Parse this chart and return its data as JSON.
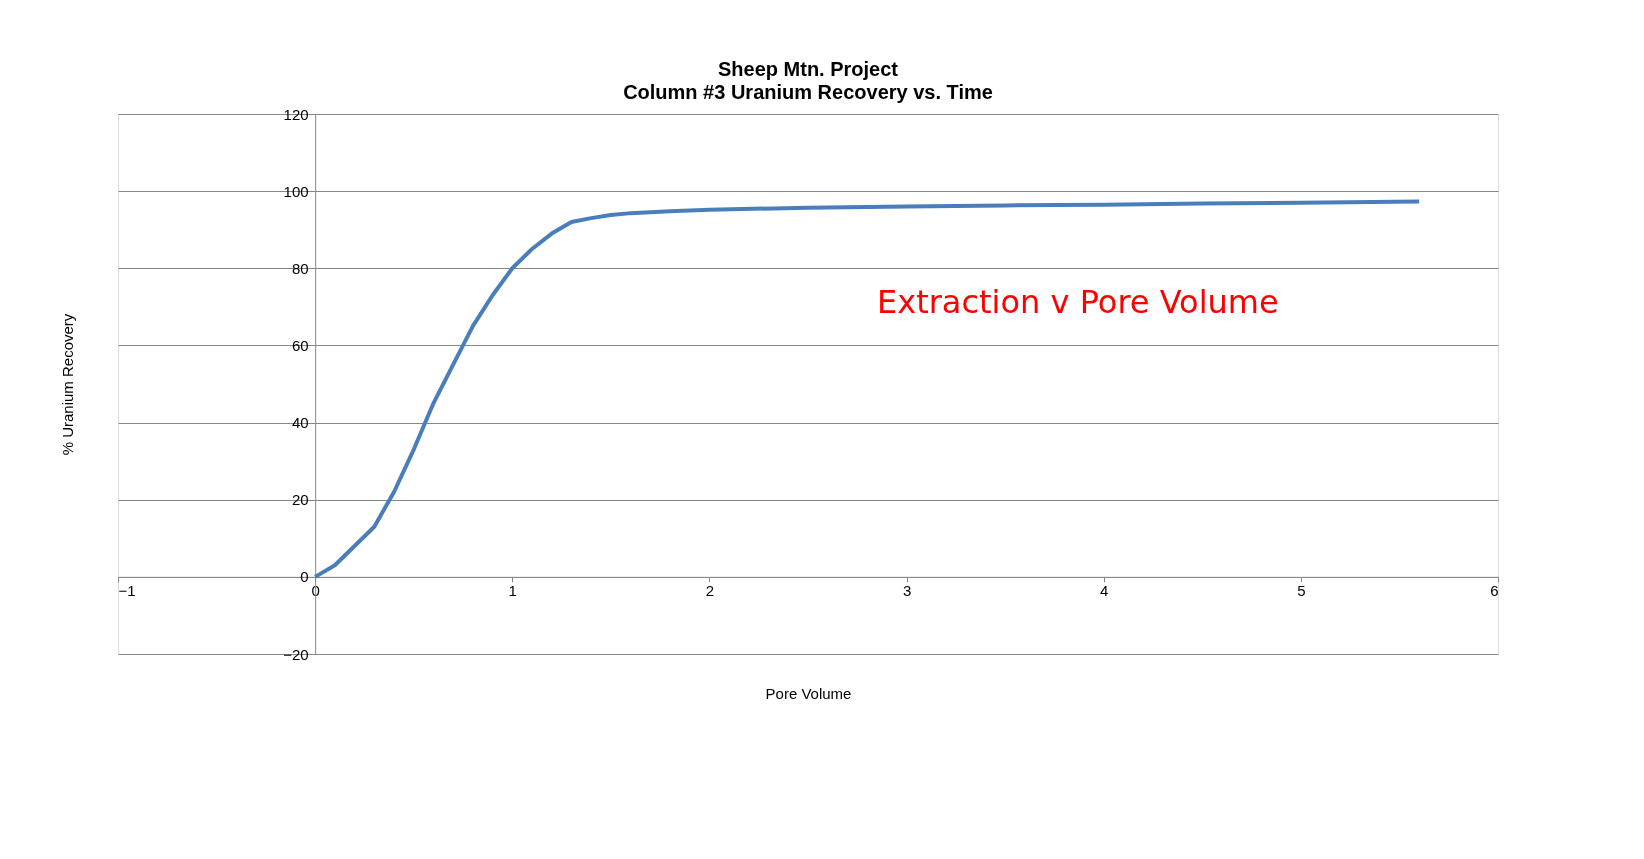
{
  "chart_data": {
    "type": "line",
    "title": "Sheep Mtn. Project",
    "subtitle": "Column #3 Uranium Recovery vs. Time",
    "xlabel": "Pore Volume",
    "ylabel": "% Uranium Recovery",
    "annotations": [
      "Extraction v Pore Volume"
    ],
    "x": [
      0,
      0.1,
      0.2,
      0.3,
      0.4,
      0.5,
      0.6,
      0.7,
      0.8,
      0.9,
      1.0,
      1.1,
      1.2,
      1.3,
      1.4,
      1.5,
      1.6,
      1.8,
      2.0,
      2.5,
      3.0,
      3.5,
      4.0,
      4.5,
      5.0,
      5.6
    ],
    "series": [
      {
        "color": "#4a7ebb",
        "values": [
          0,
          3,
          8,
          13,
          22,
          33,
          45,
          55,
          65,
          73,
          80,
          85,
          89,
          92,
          93,
          93.8,
          94.3,
          94.8,
          95.2,
          95.7,
          96,
          96.3,
          96.5,
          96.8,
          97,
          97.3
        ]
      }
    ],
    "xlim": [
      -1,
      6
    ],
    "xticks": [
      -1,
      0,
      1,
      2,
      3,
      4,
      5,
      6
    ],
    "ylim": [
      -20,
      120
    ],
    "yticks": [
      -20,
      0,
      20,
      40,
      60,
      80,
      100,
      120
    ],
    "grid": "y",
    "marker": "none",
    "line_style": "solid"
  }
}
